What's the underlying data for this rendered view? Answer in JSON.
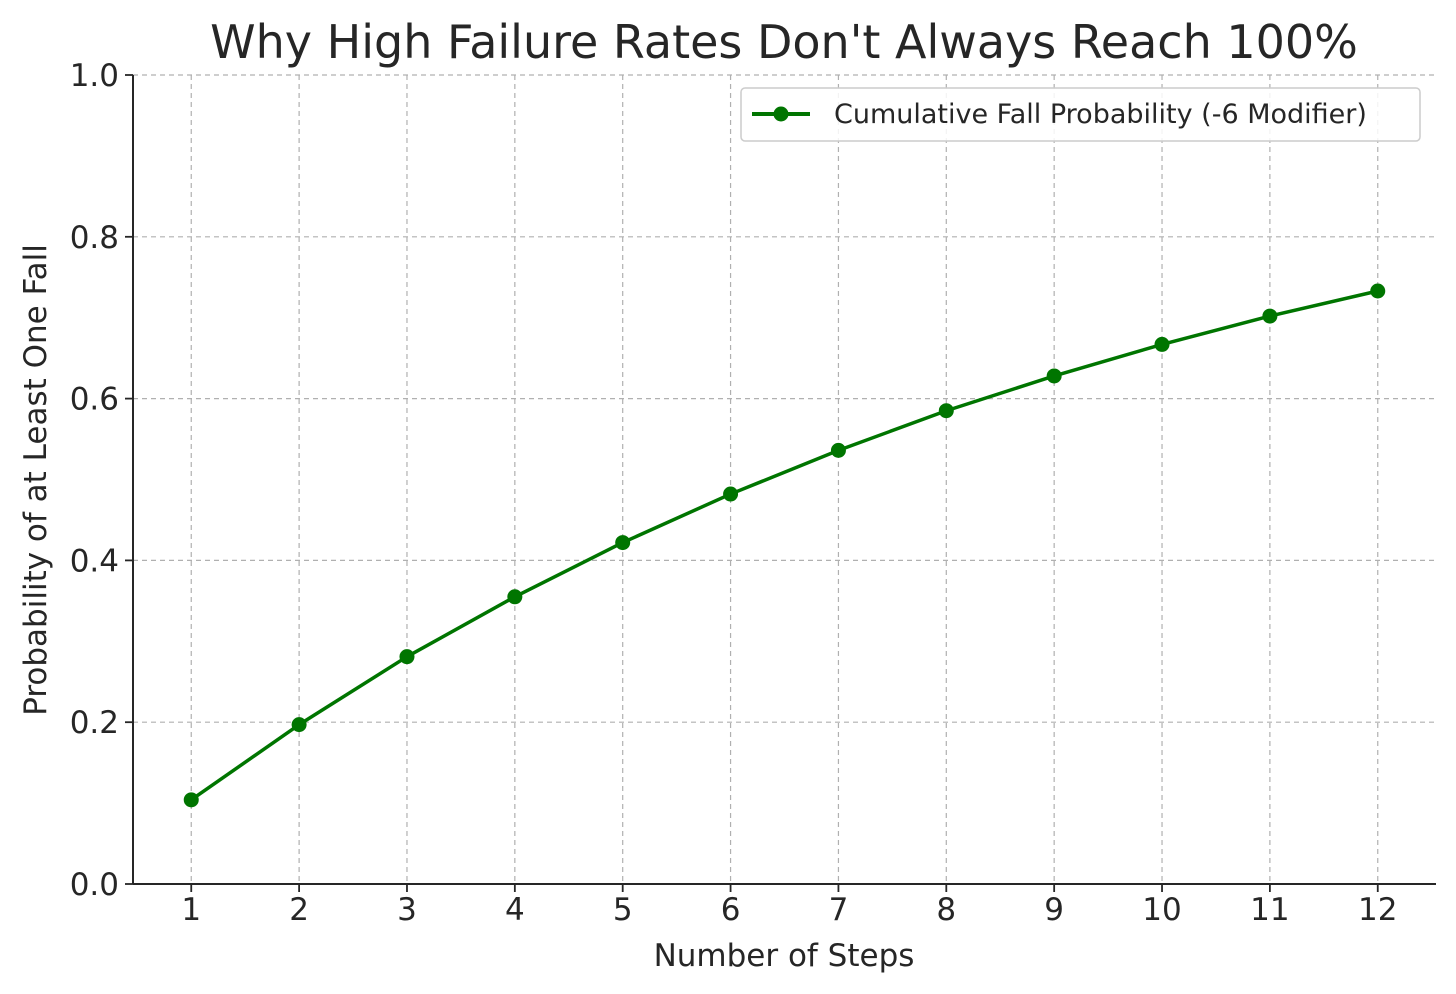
{
  "chart_data": {
    "type": "line",
    "title": "Why High Failure Rates Don't Always Reach 100%",
    "xlabel": "Number of Steps",
    "ylabel": "Probability of at Least One Fall",
    "x": [
      1,
      2,
      3,
      4,
      5,
      6,
      7,
      8,
      9,
      10,
      11,
      12
    ],
    "x_ticks": [
      "1",
      "2",
      "3",
      "4",
      "5",
      "6",
      "7",
      "8",
      "9",
      "10",
      "11",
      "12"
    ],
    "y_ticks": [
      "0.0",
      "0.2",
      "0.4",
      "0.6",
      "0.8",
      "1.0"
    ],
    "xlim": [
      0.46,
      12.54
    ],
    "ylim": [
      0,
      1
    ],
    "grid": true,
    "legend_position": "top-right",
    "series": [
      {
        "name": "Cumulative Fall Probability (-6 Modifier)",
        "color": "#007500",
        "marker": "circle",
        "values": [
          0.104,
          0.197,
          0.281,
          0.355,
          0.422,
          0.482,
          0.536,
          0.585,
          0.628,
          0.667,
          0.702,
          0.733
        ]
      }
    ]
  }
}
